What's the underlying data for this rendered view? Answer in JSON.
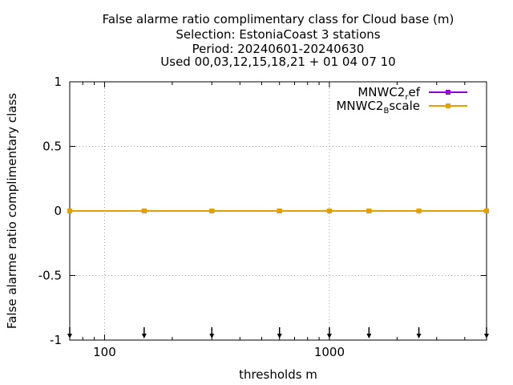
{
  "chart_data": {
    "type": "line",
    "title_lines": [
      "False alarme ratio complimentary class  for Cloud base (m)",
      "Selection: EstoniaCoast      3 stations",
      "Period: 20240601-20240630",
      "Used 00,03,12,15,18,21 + 01 04 07 10"
    ],
    "xlabel": "thresholds m",
    "ylabel": "False alarme ratio complimentary class",
    "xscale": "log",
    "xlim": [
      70,
      5000
    ],
    "ylim": [
      -1,
      1
    ],
    "xticks": [
      100,
      1000
    ],
    "xtick_labels": [
      "100",
      "1000"
    ],
    "yticks": [
      1,
      0.5,
      0,
      -0.5,
      -1
    ],
    "ytick_labels": [
      "1",
      "0.5",
      "0",
      "-0.5",
      "-1"
    ],
    "grid": true,
    "legend_position": "top-right",
    "series": [
      {
        "name": "MNWC2",
        "name_sub": "r",
        "name_rest": "ef",
        "color": "#9400d3",
        "x": [
          70,
          150,
          300,
          600,
          1000,
          1500,
          2500,
          5000
        ],
        "y": [
          0,
          0,
          0,
          0,
          0,
          0,
          0,
          0
        ]
      },
      {
        "name": "MNWC2",
        "name_sub": "B",
        "name_rest": "scale",
        "color": "#e69f00",
        "x": [
          70,
          150,
          300,
          600,
          1000,
          1500,
          2500,
          5000
        ],
        "y": [
          0,
          0,
          0,
          0,
          0,
          0,
          0,
          0
        ]
      }
    ],
    "bottom_markers": {
      "icon": "down-arrow-icon",
      "x": [
        70,
        150,
        300,
        600,
        1000,
        1500,
        2500,
        5000
      ]
    }
  }
}
